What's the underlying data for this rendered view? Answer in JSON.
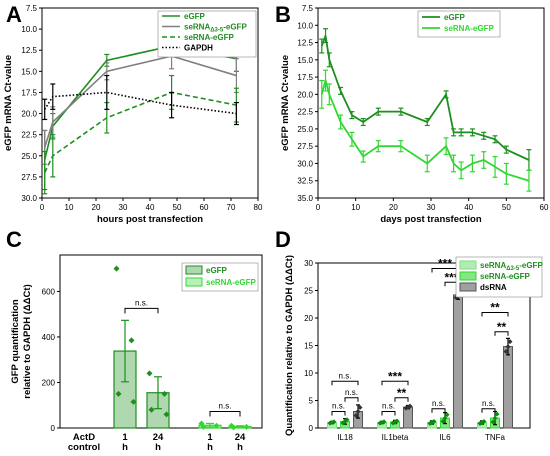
{
  "panels": {
    "a": "A",
    "b": "B",
    "c": "C",
    "d": "D"
  },
  "colors": {
    "egfp": "#1e8f1e",
    "se_trunc": "#808080",
    "se": "#32d732",
    "gapdh": "#000000",
    "dsrna": "#a0a0a0"
  },
  "chart_data": [
    {
      "panel": "A",
      "type": "line",
      "xlabel": "hours post transfection",
      "ylabel": "eGFP mRNA Ct-value",
      "xlim": [
        0,
        80
      ],
      "ylim": [
        30.0,
        7.5
      ],
      "y_inverted": true,
      "xticks": [
        "0",
        "10",
        "20",
        "30",
        "40",
        "50",
        "60",
        "70",
        "80"
      ],
      "yticks": [
        "7.5",
        "10.0",
        "12.5",
        "15.0",
        "17.5",
        "20.0",
        "22.5",
        "25.0",
        "27.5",
        "30.0"
      ],
      "x": [
        1,
        4,
        24,
        48,
        72
      ],
      "series": [
        {
          "name": "eGFP",
          "style": "solid",
          "color": "#1e8f1e",
          "values": [
            25.5,
            21.5,
            13.7,
            12.0,
            13.5
          ],
          "err": [
            3.5,
            1.5,
            0.7,
            0.6,
            1.5
          ]
        },
        {
          "name_main": "seRNA",
          "name_sub": "Δ3-5",
          "name_tail": "-eGFP",
          "style": "solid",
          "color": "#808080",
          "values": [
            24.0,
            21.0,
            15.0,
            13.2,
            15.5
          ],
          "err": [
            2.0,
            1.8,
            1.0,
            1.5,
            2.0
          ]
        },
        {
          "name_main": "seRNA",
          "name_tail": "-eGFP",
          "style": "dashed",
          "color": "#1e8f1e",
          "values": [
            27.0,
            25.0,
            20.5,
            17.5,
            19.0
          ],
          "err": [
            2.5,
            2.5,
            1.8,
            2.0,
            2.0
          ]
        },
        {
          "name": "GAPDH",
          "style": "dotted",
          "color": "#000000",
          "values": [
            19.5,
            18.0,
            17.5,
            19.0,
            20.0
          ],
          "err": [
            1.2,
            1.5,
            2.0,
            1.5,
            1.3
          ]
        }
      ]
    },
    {
      "panel": "B",
      "type": "line",
      "xlabel": "days post transfection",
      "ylabel": "eGFP mRNA Ct-value",
      "xlim": [
        0,
        60
      ],
      "ylim": [
        35.0,
        7.5
      ],
      "y_inverted": true,
      "xticks": [
        "0",
        "10",
        "20",
        "30",
        "40",
        "50",
        "60"
      ],
      "yticks": [
        "7.5",
        "10.0",
        "12.5",
        "15.0",
        "17.5",
        "20.0",
        "22.5",
        "25.0",
        "27.5",
        "30.0",
        "32.5",
        "35.0"
      ],
      "x": [
        1,
        2,
        3,
        6,
        9,
        12,
        16,
        22,
        29,
        34,
        36,
        38,
        41,
        44,
        47,
        50,
        56
      ],
      "series": [
        {
          "name": "eGFP",
          "color": "#1e8f1e",
          "values": [
            13,
            11.5,
            15,
            19.5,
            23,
            24,
            22.5,
            22.5,
            24,
            20,
            25.5,
            25.5,
            25.5,
            26,
            26.5,
            28,
            29.5
          ],
          "err": [
            1,
            1,
            1,
            0.5,
            0.5,
            0.5,
            0.5,
            0.5,
            0.5,
            0.5,
            0.5,
            0.5,
            0.5,
            0.5,
            0.5,
            0.5,
            1.5
          ]
        },
        {
          "name_main": "seRNA",
          "name_tail": "-eGFP",
          "color": "#32d732",
          "values": [
            20,
            18,
            20,
            24,
            26.5,
            29,
            27.5,
            27.5,
            30,
            27.5,
            30,
            31,
            30,
            29.5,
            30.5,
            31.5,
            32.5
          ],
          "err": [
            2,
            1.5,
            1.5,
            1,
            1,
            0.8,
            0.8,
            0.8,
            1.2,
            1.2,
            1.2,
            1.2,
            1.2,
            1.2,
            1.5,
            1.5,
            1.5
          ]
        }
      ]
    },
    {
      "panel": "C",
      "type": "bar",
      "ylabel_line1": "GFP quantification",
      "ylabel_line2": "relative to GAPDH (ΔΔCt)",
      "ylim": [
        0,
        760
      ],
      "yticks": [
        "0",
        "200",
        "400",
        "600"
      ],
      "categories": [
        "ActD control",
        "1 h",
        "24 h",
        "1 h",
        "24 h"
      ],
      "series": [
        {
          "name": "eGFP",
          "color": "#1e8f1e"
        },
        {
          "name_main": "seRNA",
          "name_tail": "-eGFP",
          "color": "#32d732"
        }
      ],
      "bars": [
        {
          "value": 0,
          "err": 0,
          "series": 0,
          "points": []
        },
        {
          "value": 338,
          "err": 135,
          "series": 0,
          "points": [
            700,
            385,
            150,
            115
          ]
        },
        {
          "value": 155,
          "err": 70,
          "series": 0,
          "points": [
            240,
            150,
            80,
            60
          ]
        },
        {
          "value": 12,
          "err": 8,
          "series": 1,
          "points": [
            20,
            10,
            5
          ]
        },
        {
          "value": 6,
          "err": 4,
          "series": 1,
          "points": [
            10,
            5,
            3
          ]
        }
      ],
      "significance": [
        {
          "text": "n.s.",
          "from": 1,
          "to": 2
        },
        {
          "text": "n.s.",
          "from": 3,
          "to": 4
        }
      ]
    },
    {
      "panel": "D",
      "type": "bar",
      "ylabel": "Quantification relative to GAPDH (ΔΔCt)",
      "ylim": [
        0,
        30
      ],
      "yticks": [
        "0",
        "5",
        "10",
        "15",
        "20",
        "25",
        "30"
      ],
      "categories": [
        "IL18",
        "IL1beta",
        "IL6",
        "TNFa"
      ],
      "series": [
        {
          "name_main": "seRNA",
          "name_sub": "Δ3-5",
          "name_tail": "-eGFP",
          "color": "#7ee07e"
        },
        {
          "name_main": "seRNA",
          "name_tail": "-eGFP",
          "color": "#32d732"
        },
        {
          "name": "dsRNA",
          "color": "#a0a0a0"
        }
      ],
      "values": [
        [
          1,
          1.2,
          3
        ],
        [
          1,
          1.1,
          3.8
        ],
        [
          1,
          1.8,
          24.2
        ],
        [
          1,
          1.8,
          14.8
        ]
      ],
      "errs": [
        [
          0.2,
          0.5,
          1.2
        ],
        [
          0.2,
          0.3,
          0.3
        ],
        [
          0.3,
          1.0,
          0.8
        ],
        [
          0.3,
          1.2,
          1.5
        ]
      ],
      "significance": [
        {
          "group": 0,
          "pairs": [
            [
              "n.s.",
              0,
              1,
              3
            ],
            [
              "n.s.",
              1,
              2,
              5.5
            ],
            [
              "n.s.",
              0,
              2,
              8.5
            ]
          ]
        },
        {
          "group": 1,
          "pairs": [
            [
              "n.s.",
              0,
              1,
              3
            ],
            [
              "**",
              1,
              2,
              5.5
            ],
            [
              "***",
              0,
              2,
              8.5
            ]
          ]
        },
        {
          "group": 2,
          "pairs": [
            [
              "n.s.",
              0,
              1,
              3.5
            ],
            [
              "***",
              1,
              2,
              26.5
            ],
            [
              "***",
              0,
              2,
              29
            ]
          ]
        },
        {
          "group": 3,
          "pairs": [
            [
              "n.s.",
              0,
              1,
              3.5
            ],
            [
              "**",
              1,
              2,
              17.5
            ],
            [
              "**",
              0,
              2,
              21
            ]
          ]
        }
      ]
    }
  ]
}
